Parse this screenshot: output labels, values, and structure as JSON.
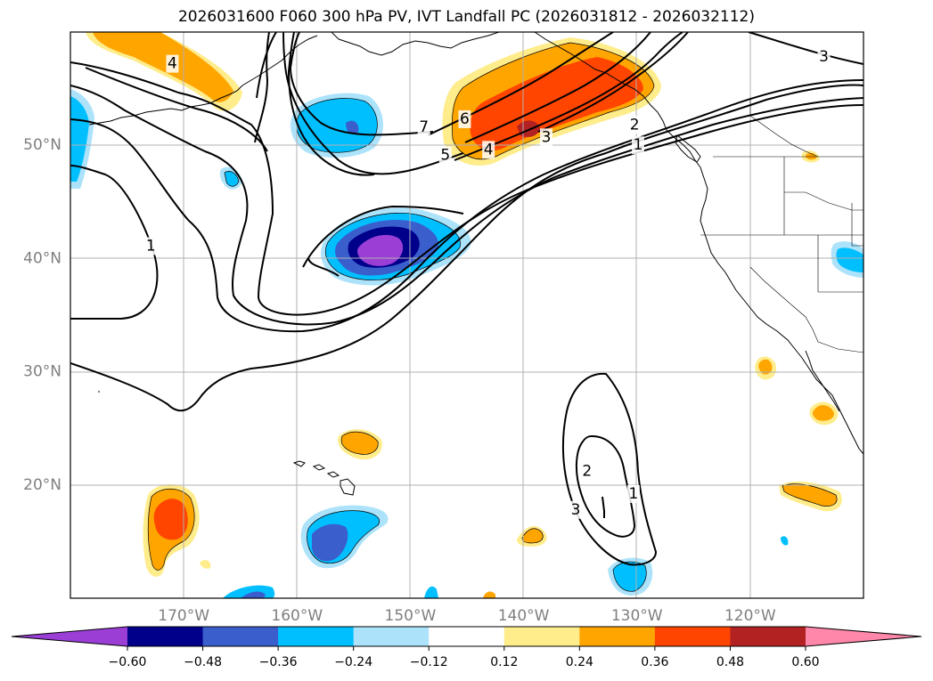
{
  "title": "2026031600 F060 300 hPa PV, IVT Landfall PC (2026031812 - 2026032112)",
  "map": {
    "lon_range": [
      -180,
      -110
    ],
    "lat_range": [
      10,
      60
    ],
    "lat_ticks": [
      {
        "value": 50,
        "label": "50°N"
      },
      {
        "value": 40,
        "label": "40°N"
      },
      {
        "value": 30,
        "label": "30°N"
      },
      {
        "value": 20,
        "label": "20°N"
      }
    ],
    "lon_ticks": [
      {
        "value": -170,
        "label": "170°W"
      },
      {
        "value": -160,
        "label": "160°W"
      },
      {
        "value": -150,
        "label": "150°W"
      },
      {
        "value": -140,
        "label": "140°W"
      },
      {
        "value": -130,
        "label": "130°W"
      },
      {
        "value": -120,
        "label": "120°W"
      }
    ],
    "contour_labels": [
      {
        "text": "4",
        "lon": -171,
        "lat": 57.2
      },
      {
        "text": "7",
        "lon": -148.8,
        "lat": 51.6
      },
      {
        "text": "6",
        "lon": -145.2,
        "lat": 52.3
      },
      {
        "text": "5",
        "lon": -146.9,
        "lat": 49.1
      },
      {
        "text": "4",
        "lon": -143.1,
        "lat": 49.6
      },
      {
        "text": "3",
        "lon": -138,
        "lat": 50.7
      },
      {
        "text": "2",
        "lon": -130.2,
        "lat": 51.8
      },
      {
        "text": "1",
        "lon": -129.9,
        "lat": 50.0
      },
      {
        "text": "3",
        "lon": -113.5,
        "lat": 57.8
      },
      {
        "text": "1",
        "lon": -172.9,
        "lat": 41.1
      },
      {
        "text": "2",
        "lon": -134.4,
        "lat": 21.2
      },
      {
        "text": "1",
        "lon": -130.3,
        "lat": 19.2
      },
      {
        "text": "3",
        "lon": -135.4,
        "lat": 17.8
      }
    ]
  },
  "colorbar": {
    "ticks": [
      "−0.60",
      "−0.48",
      "−0.36",
      "−0.24",
      "−0.12",
      "0.12",
      "0.24",
      "0.36",
      "0.48",
      "0.60"
    ],
    "colors": [
      "#9a3ed6",
      "#00008b",
      "#3a5fcd",
      "#00bfff",
      "#ade3fa",
      "#ffffff",
      "#ffec8b",
      "#ffa500",
      "#ff4500",
      "#b22222",
      "#ff88aa"
    ]
  },
  "colors": {
    "positive_1": "#ffec8b",
    "positive_2": "#ffa500",
    "positive_3": "#ff4500",
    "positive_4": "#b22222",
    "negative_1": "#ade3fa",
    "negative_2": "#00bfff",
    "negative_3": "#3a5fcd",
    "negative_4": "#00008b",
    "negative_5": "#9a3ed6"
  }
}
